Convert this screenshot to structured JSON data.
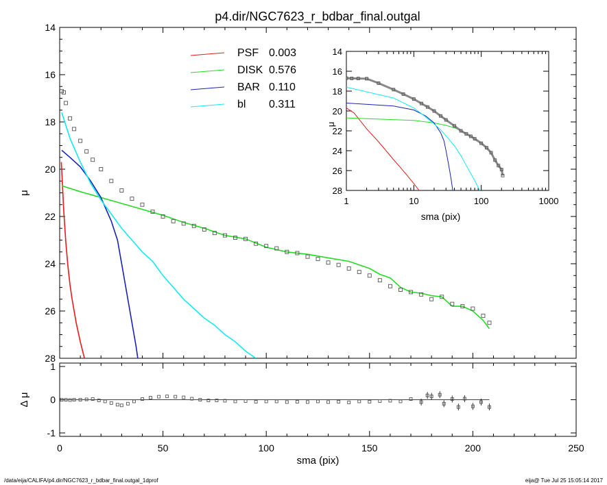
{
  "title": "p4.dir/NGC7623_r_bdbar_final.outgal",
  "footer": {
    "left": "/data/eija/CALIFA/p4.dir/NGC7623_r_bdbar_final.outgal_1dprof",
    "right": "eija@  Tue Jul 25 15:05:14 2017"
  },
  "colors": {
    "psf": "#e8191d",
    "disk": "#22dd22",
    "bar": "#1822b8",
    "bl": "#11e9ee",
    "data": "#555555"
  },
  "chart_data": [
    {
      "type": "line",
      "panel": "main",
      "xlabel": "sma (pix)",
      "ylabel": "μ",
      "xlim": [
        0,
        250
      ],
      "ylim": [
        28,
        14
      ],
      "xticks": [
        0,
        50,
        100,
        150,
        200,
        250
      ],
      "yticks": [
        14,
        16,
        18,
        20,
        22,
        24,
        26,
        28
      ],
      "legend_position": "top-center",
      "legend": [
        {
          "name": "PSF",
          "value": "0.003",
          "color_key": "psf"
        },
        {
          "name": "DISK",
          "value": "0.576",
          "color_key": "disk"
        },
        {
          "name": "BAR",
          "value": "0.110",
          "color_key": "bar"
        },
        {
          "name": "bl",
          "value": "0.311",
          "color_key": "bl"
        }
      ],
      "series": [
        {
          "key": "psf",
          "x": [
            0.8,
            2,
            3,
            4,
            5,
            6,
            8,
            10,
            12
          ],
          "y": [
            19.7,
            21.8,
            23.1,
            24.1,
            24.9,
            25.5,
            26.5,
            27.3,
            28.0
          ]
        },
        {
          "key": "disk",
          "x": [
            1,
            10,
            20,
            30,
            40,
            50,
            60,
            70,
            80,
            90,
            100,
            110,
            120,
            130,
            140,
            150,
            155,
            160,
            165,
            170,
            175,
            180,
            185,
            190,
            195,
            200,
            205,
            208
          ],
          "y": [
            20.7,
            20.95,
            21.2,
            21.45,
            21.7,
            21.95,
            22.25,
            22.5,
            22.8,
            22.95,
            23.3,
            23.5,
            23.6,
            23.75,
            23.9,
            24.2,
            24.45,
            24.6,
            25.0,
            25.2,
            25.25,
            25.35,
            25.4,
            25.8,
            25.8,
            26.0,
            26.4,
            26.75
          ]
        },
        {
          "key": "bar",
          "x": [
            1,
            5,
            10,
            15,
            20,
            25,
            28,
            30,
            32,
            34,
            36,
            37,
            37.8
          ],
          "y": [
            19.2,
            19.5,
            19.9,
            20.5,
            21.2,
            22.2,
            23.0,
            24.0,
            25.0,
            26.0,
            27.0,
            27.5,
            28.0
          ]
        },
        {
          "key": "bl",
          "x": [
            1,
            5,
            10,
            15,
            20,
            25,
            30,
            35,
            40,
            45,
            50,
            55,
            60,
            65,
            70,
            75,
            80,
            85,
            90,
            95
          ],
          "y": [
            17.6,
            18.7,
            19.7,
            20.6,
            21.3,
            21.9,
            22.5,
            23.0,
            23.5,
            23.9,
            24.5,
            25.0,
            25.5,
            25.9,
            26.3,
            26.6,
            27.0,
            27.3,
            27.7,
            28.0
          ]
        },
        {
          "key": "data",
          "x": [
            1,
            2,
            3,
            5,
            7,
            10,
            13,
            16,
            20,
            25,
            30,
            35,
            40,
            45,
            50,
            55,
            60,
            65,
            70,
            75,
            80,
            85,
            90,
            95,
            100,
            105,
            110,
            115,
            120,
            125,
            130,
            135,
            140,
            145,
            150,
            155,
            160,
            165,
            170,
            175,
            180,
            185,
            190,
            195,
            200,
            205,
            208
          ],
          "y": [
            16.7,
            16.75,
            17.2,
            17.85,
            18.3,
            18.8,
            19.25,
            19.6,
            20.0,
            20.5,
            20.9,
            21.25,
            21.5,
            21.8,
            22.0,
            22.2,
            22.3,
            22.4,
            22.55,
            22.7,
            22.8,
            22.9,
            22.95,
            23.15,
            23.25,
            23.35,
            23.5,
            23.55,
            23.7,
            23.8,
            23.95,
            24.05,
            24.2,
            24.35,
            24.5,
            24.7,
            24.95,
            25.1,
            25.2,
            25.3,
            25.5,
            25.4,
            25.7,
            25.8,
            25.9,
            26.2,
            26.5
          ]
        }
      ]
    },
    {
      "type": "scatter",
      "panel": "residual",
      "xlabel": "",
      "ylabel": "Δ μ",
      "xlim": [
        0,
        250
      ],
      "ylim": [
        -1,
        1
      ],
      "yticks": [
        -1,
        0,
        1
      ],
      "x": [
        1,
        3,
        5,
        7,
        10,
        13,
        16,
        19,
        22,
        25,
        28,
        30,
        33,
        36,
        40,
        44,
        48,
        52,
        56,
        60,
        64,
        68,
        72,
        76,
        80,
        85,
        90,
        95,
        100,
        105,
        110,
        115,
        120,
        125,
        130,
        135,
        140,
        145,
        150,
        155,
        160,
        165,
        170,
        175,
        178,
        180,
        184,
        186,
        190,
        193,
        196,
        200,
        204,
        208
      ],
      "y": [
        0.0,
        0.0,
        -0.01,
        0.0,
        0.0,
        0.01,
        0.02,
        -0.02,
        -0.05,
        -0.1,
        -0.15,
        -0.17,
        -0.12,
        -0.05,
        0.02,
        0.06,
        0.09,
        0.1,
        0.09,
        0.07,
        0.03,
        0.0,
        -0.02,
        -0.02,
        -0.03,
        -0.05,
        -0.04,
        -0.06,
        -0.05,
        -0.05,
        -0.07,
        -0.06,
        -0.07,
        -0.05,
        -0.07,
        -0.06,
        -0.08,
        -0.05,
        -0.06,
        -0.04,
        -0.03,
        -0.05,
        0.02,
        -0.07,
        0.13,
        0.1,
        0.15,
        -0.12,
        0.02,
        -0.22,
        0.03,
        -0.2,
        -0.07,
        -0.22
      ]
    },
    {
      "type": "line",
      "panel": "inset",
      "xlabel": "sma (pix)",
      "ylabel": "μ",
      "xscale": "log",
      "xlim": [
        1,
        1000
      ],
      "ylim": [
        28,
        14
      ],
      "xticks": [
        1,
        10,
        100,
        1000
      ],
      "yticks": [
        14,
        16,
        18,
        20,
        22,
        24,
        26,
        28
      ],
      "series": [
        {
          "key": "psf",
          "x": [
            1,
            1.3,
            2,
            3,
            4,
            5,
            6,
            8,
            10,
            12
          ],
          "y": [
            19.7,
            20.2,
            21.8,
            23.1,
            24.1,
            24.9,
            25.5,
            26.5,
            27.3,
            28.0
          ]
        },
        {
          "key": "disk",
          "x": [
            1,
            10,
            20,
            30,
            40,
            50,
            60,
            70,
            80,
            90,
            100
          ],
          "y": [
            20.7,
            20.95,
            21.2,
            21.45,
            21.7,
            21.95,
            22.25,
            22.5,
            22.8,
            22.95,
            23.3
          ]
        },
        {
          "key": "bar",
          "x": [
            1,
            5,
            10,
            15,
            20,
            25,
            28,
            30,
            32,
            34,
            36,
            37.8
          ],
          "y": [
            19.2,
            19.5,
            19.9,
            20.5,
            21.2,
            22.2,
            23.0,
            24.0,
            25.0,
            26.0,
            27.0,
            28.0
          ]
        },
        {
          "key": "bl",
          "x": [
            1,
            5,
            10,
            15,
            20,
            25,
            30,
            40,
            50,
            60,
            70,
            80,
            90,
            95
          ],
          "y": [
            17.6,
            18.7,
            19.7,
            20.6,
            21.3,
            21.9,
            22.5,
            23.5,
            24.5,
            25.5,
            26.3,
            27.0,
            27.7,
            28.0
          ]
        },
        {
          "key": "data",
          "x": [
            1,
            1.2,
            1.5,
            2,
            3,
            5,
            7,
            10,
            13,
            16,
            20,
            25,
            30,
            40,
            50,
            60,
            70,
            80,
            100,
            120,
            140,
            160,
            180,
            200,
            208
          ],
          "y": [
            16.7,
            16.72,
            16.73,
            16.75,
            17.2,
            17.85,
            18.3,
            18.8,
            19.25,
            19.6,
            20.0,
            20.5,
            20.9,
            21.5,
            22.0,
            22.3,
            22.55,
            22.8,
            23.25,
            23.7,
            24.2,
            24.95,
            25.5,
            25.9,
            26.5
          ]
        }
      ]
    }
  ]
}
